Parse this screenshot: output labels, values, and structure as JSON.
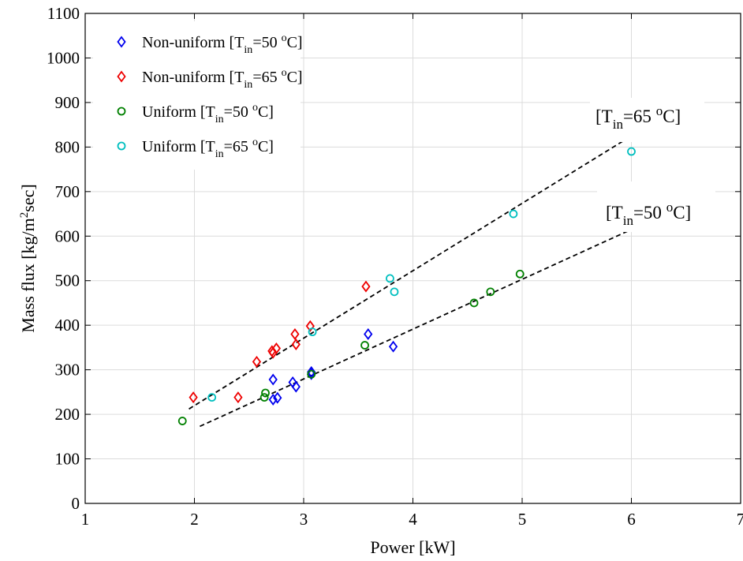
{
  "chart_data": {
    "type": "scatter",
    "xlabel": "Power [kW]",
    "ylabel": "Mass flux [kg/m²sec]",
    "xlim": [
      1,
      7
    ],
    "ylim": [
      0,
      1100
    ],
    "xticks": [
      1,
      2,
      3,
      4,
      5,
      6,
      7
    ],
    "yticks": [
      0,
      100,
      200,
      300,
      400,
      500,
      600,
      700,
      800,
      900,
      1000,
      1100
    ],
    "grid": true,
    "legend_position": "top-left",
    "series": [
      {
        "name": "Non-uniform [Tin=50 oC]",
        "marker": "diamond",
        "color": "#0000ee",
        "points": [
          [
            2.72,
            278
          ],
          [
            2.72,
            233
          ],
          [
            2.76,
            237
          ],
          [
            2.9,
            272
          ],
          [
            2.93,
            262
          ],
          [
            3.07,
            295
          ],
          [
            3.07,
            290
          ],
          [
            3.59,
            380
          ],
          [
            3.82,
            352
          ]
        ]
      },
      {
        "name": "Non-uniform [Tin=65 oC]",
        "marker": "diamond",
        "color": "#ee0000",
        "points": [
          [
            1.99,
            238
          ],
          [
            2.4,
            238
          ],
          [
            2.57,
            318
          ],
          [
            2.71,
            342
          ],
          [
            2.72,
            338
          ],
          [
            2.75,
            348
          ],
          [
            2.92,
            380
          ],
          [
            2.93,
            357
          ],
          [
            3.06,
            398
          ],
          [
            3.57,
            487
          ]
        ]
      },
      {
        "name": "Uniform [Tin=50 oC]",
        "marker": "circle",
        "color": "#008000",
        "points": [
          [
            1.89,
            185
          ],
          [
            2.64,
            238
          ],
          [
            2.65,
            248
          ],
          [
            3.07,
            290
          ],
          [
            3.56,
            355
          ],
          [
            4.56,
            450
          ],
          [
            4.71,
            475
          ],
          [
            4.98,
            515
          ]
        ]
      },
      {
        "name": "Uniform [Tin=65 oC]",
        "marker": "circle",
        "color": "#00bfbf",
        "points": [
          [
            2.16,
            238
          ],
          [
            3.08,
            385
          ],
          [
            3.79,
            505
          ],
          [
            3.83,
            475
          ],
          [
            4.92,
            650
          ],
          [
            6.0,
            790
          ]
        ]
      }
    ],
    "fit_lines": [
      {
        "label": "Tin=65 oC",
        "x": [
          1.95,
          6.0
        ],
        "y": [
          212,
          825
        ]
      },
      {
        "label": "Tin=50 oC",
        "x": [
          2.05,
          6.0
        ],
        "y": [
          173,
          615
        ]
      }
    ],
    "annotations": {
      "line65": {
        "pre": "[T",
        "sub": "in",
        "mid": "=65 ",
        "sup": "o",
        "post": "C]"
      },
      "line50": {
        "pre": "[T",
        "sub": "in",
        "mid": "=50 ",
        "sup": "o",
        "post": "C]"
      }
    },
    "legend": [
      {
        "pre": "Non-uniform [T",
        "sub": "in",
        "mid": "=50 ",
        "sup": "o",
        "post": "C]"
      },
      {
        "pre": "Non-uniform [T",
        "sub": "in",
        "mid": "=65 ",
        "sup": "o",
        "post": "C]"
      },
      {
        "pre": "Uniform [T",
        "sub": "in",
        "mid": "=50 ",
        "sup": "o",
        "post": "C]"
      },
      {
        "pre": "Uniform [T",
        "sub": "in",
        "mid": "=65 ",
        "sup": "o",
        "post": "C]"
      }
    ]
  }
}
